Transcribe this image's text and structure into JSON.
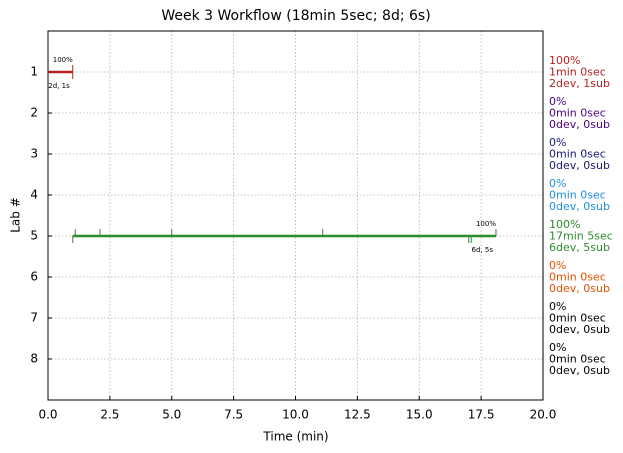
{
  "chart_data": {
    "type": "timeline",
    "title": "Week 3 Workflow (18min 5sec; 8d; 6s)",
    "x_label": "Time (min)",
    "y_label": "Lab #",
    "xlim": [
      0,
      20
    ],
    "xticks": [
      {
        "value": 0,
        "label": "0.0"
      },
      2.5,
      {
        "value": 5,
        "label": "5.0"
      },
      7.5,
      {
        "value": 10,
        "label": "10.0"
      },
      12.5,
      {
        "value": 15,
        "label": "15.0"
      },
      17.5,
      {
        "value": 20,
        "label": "20.0"
      }
    ],
    "ylim": [
      9,
      0
    ],
    "yticks": [
      1,
      2,
      3,
      4,
      5,
      6,
      7,
      8
    ],
    "grid": true,
    "series": [
      {
        "lab": 1,
        "color": "#b22222",
        "start": 0,
        "end": 1.0,
        "up_ticks": [
          1.0
        ],
        "down_ticks": [
          1.0
        ],
        "label_top": "100%",
        "label_bottom": "2d, 1s",
        "summary": [
          "100%",
          "1min 0sec",
          "2dev, 1sub"
        ]
      },
      {
        "lab": 2,
        "color": "#4b0082",
        "summary": [
          "0%",
          "0min 0sec",
          "0dev, 0sub"
        ]
      },
      {
        "lab": 3,
        "color": "#191970",
        "summary": [
          "0%",
          "0min 0sec",
          "0dev, 0sub"
        ]
      },
      {
        "lab": 4,
        "color": "#1e90e0",
        "summary": [
          "0%",
          "0min 0sec",
          "0dev, 0sub"
        ]
      },
      {
        "lab": 5,
        "color": "#2e8b2e",
        "start": 1.0,
        "end": 18.1,
        "up_ticks": [
          1.1,
          2.1,
          5.0,
          11.1,
          18.1
        ],
        "down_ticks": [
          1.0,
          17.0,
          17.1
        ],
        "label_top": "100%",
        "label_bottom": "6d, 5s",
        "summary": [
          "100%",
          "17min 5sec",
          "6dev, 5sub"
        ]
      },
      {
        "lab": 6,
        "color": "#e65100",
        "summary": [
          "0%",
          "0min 0sec",
          "0dev, 0sub"
        ]
      },
      {
        "lab": 7,
        "color": "#000000",
        "summary": [
          "0%",
          "0min 0sec",
          "0dev, 0sub"
        ]
      },
      {
        "lab": 8,
        "color": "#000000",
        "summary": [
          "0%",
          "0min 0sec",
          "0dev, 0sub"
        ]
      }
    ]
  }
}
